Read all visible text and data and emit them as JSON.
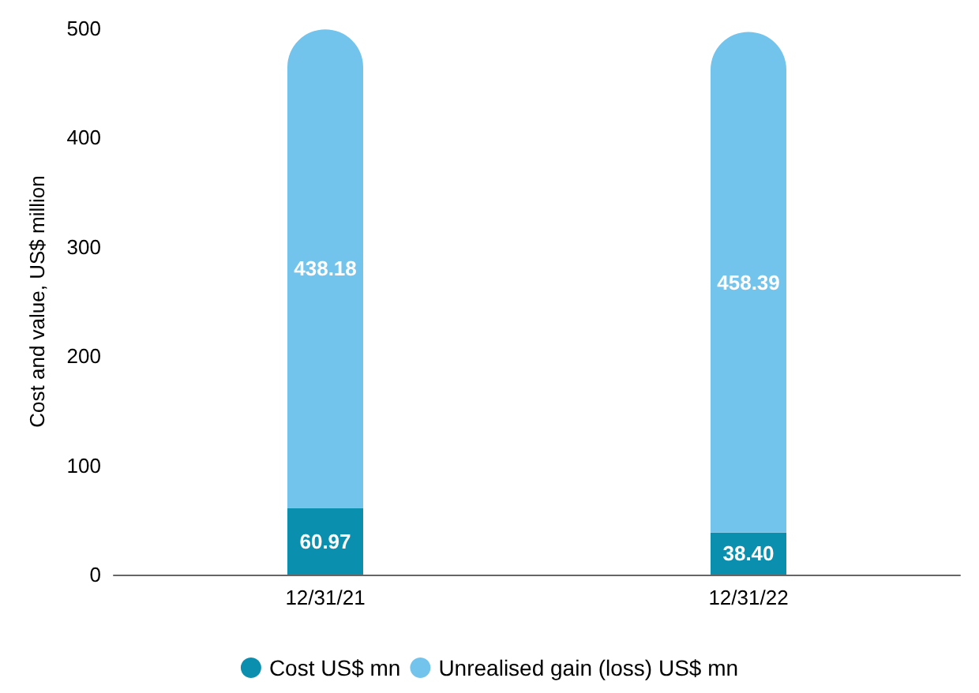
{
  "chart_data": {
    "type": "bar",
    "stacked": true,
    "ylabel": "Cost and value, US$ million",
    "categories": [
      "12/31/21",
      "12/31/22"
    ],
    "series": [
      {
        "name": "Cost US$ mn",
        "color": "#0a8fae",
        "values": [
          60.97,
          38.4
        ],
        "value_labels": [
          "60.97",
          "38.40"
        ]
      },
      {
        "name": "Unrealised gain (loss) US$ mn",
        "color": "#72c4ec",
        "values": [
          438.18,
          458.39
        ],
        "value_labels": [
          "438.18",
          "458.39"
        ]
      }
    ],
    "ylim": [
      0,
      500
    ],
    "yticks": [
      0,
      100,
      200,
      300,
      400,
      500
    ],
    "grid": false,
    "legend": "bottom"
  }
}
